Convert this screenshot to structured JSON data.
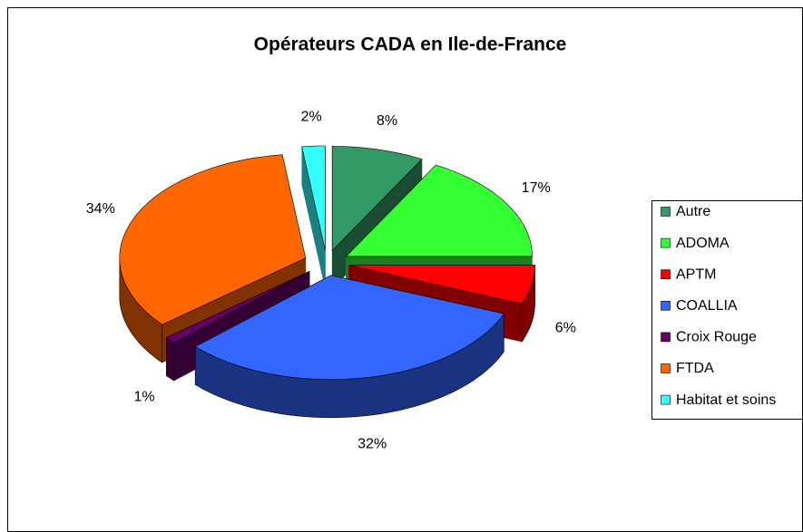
{
  "chart_data": {
    "type": "pie3d",
    "title": "Opérateurs CADA en Ile-de-France",
    "categories": [
      "Autre",
      "ADOMA",
      "APTM",
      "COALLIA",
      "Croix Rouge",
      "FTDA",
      "Habitat et soins"
    ],
    "values": [
      8,
      17,
      6,
      32,
      1,
      34,
      2
    ],
    "value_labels": [
      "8%",
      "17%",
      "6%",
      "32%",
      "1%",
      "34%",
      "2%"
    ],
    "colors": [
      "#339966",
      "#33ff33",
      "#ff0000",
      "#3366ff",
      "#660066",
      "#ff6600",
      "#33ffff"
    ],
    "legend": "right"
  }
}
